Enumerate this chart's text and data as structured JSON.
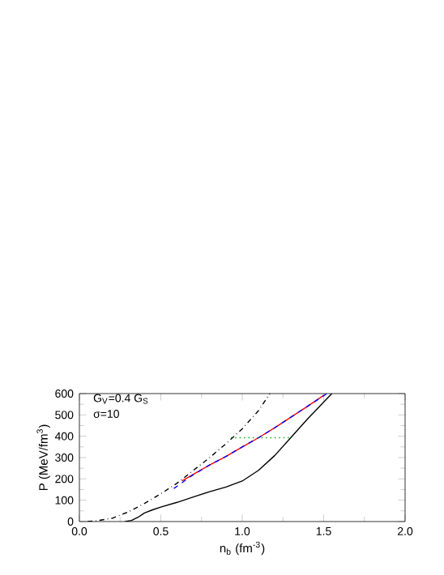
{
  "chart_data": {
    "type": "line",
    "xlabel": "n$_{b}$ (fm$^{-3}$)",
    "ylabel": "P (MeV/fm$^{3}$)",
    "annotations": [
      "G$_{V}$=0.4 G$_{S}$",
      "σ=10"
    ],
    "xlim": [
      0,
      2
    ],
    "ylim": [
      0,
      600
    ],
    "xticks": [
      {
        "value": 0,
        "label": "0.0"
      },
      {
        "value": 0.5,
        "label": "0.5"
      },
      {
        "value": 1,
        "label": "1.0"
      },
      {
        "value": 1.5,
        "label": "1.5"
      },
      {
        "value": 2,
        "label": "2.0"
      }
    ],
    "yticks": [
      0,
      100,
      200,
      300,
      400,
      500,
      600
    ],
    "grid": false,
    "series": [
      {
        "color": "#000000",
        "line_style": "solid",
        "x": [
          0.28,
          0.32,
          0.36,
          0.4,
          0.45,
          0.5,
          0.6,
          0.7,
          0.8,
          0.9,
          1.0,
          1.1,
          1.2,
          1.3,
          1.4,
          1.5,
          1.55
        ],
        "values": [
          0,
          5,
          20,
          40,
          55,
          68,
          90,
          115,
          140,
          162,
          190,
          240,
          310,
          395,
          480,
          560,
          600
        ]
      },
      {
        "color": "#000000",
        "line_style": "dashdot",
        "x": [
          0.05,
          0.1,
          0.2,
          0.3,
          0.4,
          0.5,
          0.6,
          0.7,
          0.8,
          0.9,
          1.0,
          1.1,
          1.17
        ],
        "values": [
          0,
          3,
          15,
          45,
          85,
          130,
          180,
          240,
          300,
          365,
          435,
          520,
          600
        ]
      },
      {
        "color": "#ff0000",
        "line_style": "solid",
        "x": [
          0.63,
          0.7,
          0.8,
          0.9,
          1.0,
          1.1,
          1.2,
          1.3,
          1.4,
          1.5
        ],
        "values": [
          190,
          222,
          265,
          305,
          350,
          393,
          440,
          490,
          540,
          592
        ]
      },
      {
        "color": "#0000ff",
        "line_style": "dashed",
        "x": [
          0.58,
          0.7,
          0.8,
          0.9,
          1.0,
          1.1,
          1.2,
          1.3,
          1.4,
          1.52
        ],
        "values": [
          155,
          220,
          265,
          305,
          350,
          393,
          440,
          490,
          540,
          600
        ]
      },
      {
        "color": "#00aa00",
        "line_style": "dotted",
        "x": [
          0.93,
          1.29
        ],
        "values": [
          393,
          393
        ]
      }
    ]
  }
}
